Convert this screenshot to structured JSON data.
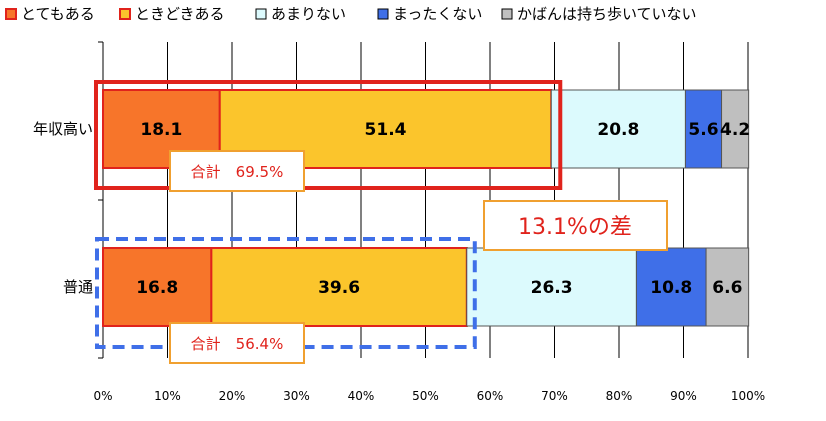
{
  "chart_data": {
    "type": "bar",
    "orientation": "horizontal",
    "stacked": true,
    "categories": [
      "年収高い",
      "普通"
    ],
    "series": [
      {
        "name": "とてもある",
        "color": "#f7752a",
        "values": [
          18.1,
          16.8
        ]
      },
      {
        "name": "ときどきある",
        "color": "#fbc52c",
        "values": [
          51.4,
          39.6
        ]
      },
      {
        "name": "あまりない",
        "color": "#dcfafd",
        "values": [
          20.8,
          26.3
        ]
      },
      {
        "name": "まったくない",
        "color": "#3f6fe8",
        "values": [
          5.6,
          10.8
        ]
      },
      {
        "name": "かばんは持ち歩いていない",
        "color": "#bfbfbf",
        "values": [
          4.2,
          6.6
        ]
      }
    ],
    "data_labels": [
      [
        "18.1",
        "51.4",
        "20.8",
        "5.6",
        "4.2"
      ],
      [
        "16.8",
        "39.6",
        "26.3",
        "10.8",
        "6.6"
      ]
    ],
    "xlim": [
      0,
      100
    ],
    "x_ticks": [
      "0%",
      "10%",
      "20%",
      "30%",
      "40%",
      "50%",
      "60%",
      "70%",
      "80%",
      "90%",
      "100%"
    ],
    "grid": "vertical",
    "legend_position": "top",
    "annotations": {
      "total_high": "合計　69.5%",
      "total_normal": "合計　56.4%",
      "difference": "13.1%の差"
    },
    "highlight_color": "#e0231c",
    "dashed_color": "#3f6fe8"
  }
}
